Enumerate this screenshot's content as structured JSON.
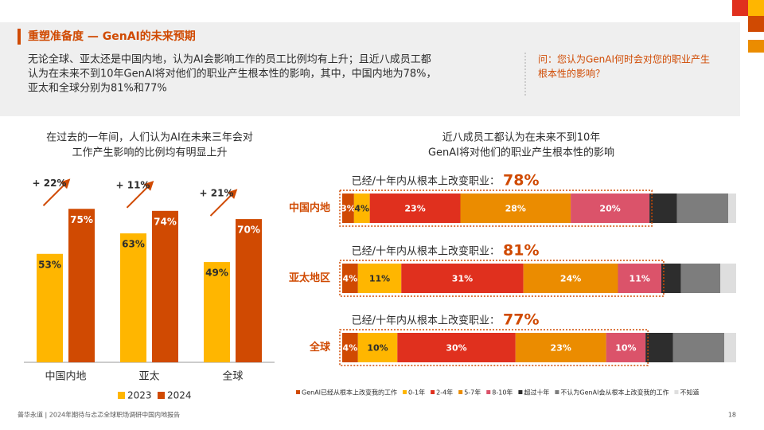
{
  "header": {
    "title": "重塑准备度 — GenAI的未来预期",
    "description": [
      "无论全球、亚太还是中国内地，认为AI会影响工作的员工比例均有上升；且近八成员工都",
      "认为在未来不到10年GenAI将对他们的职业产生根本性的影响，其中，中国内地为78%，",
      "亚太和全球分别为81%和77%"
    ],
    "question": [
      "问：您认为GenAI何时会对您的职业产生",
      "根本性的影响？"
    ]
  },
  "chart_data": [
    {
      "type": "bar",
      "title": [
        "在过去的一年间，人们认为AI在未来三年会对",
        "工作产生影响的比例均有明显上升"
      ],
      "categories": [
        "中国内地",
        "亚太",
        "全球"
      ],
      "ylim": [
        0,
        100
      ],
      "annotations": [
        "+ 22%",
        "+ 11%",
        "+ 21%"
      ],
      "series": [
        {
          "name": "2023",
          "color": "#ffb600",
          "values": [
            53,
            63,
            49
          ],
          "value_labels": [
            "53%",
            "63%",
            "49%"
          ]
        },
        {
          "name": "2024",
          "color": "#d04a02",
          "values": [
            75,
            74,
            70
          ],
          "value_labels": [
            "75%",
            "74%",
            "70%"
          ]
        }
      ]
    },
    {
      "type": "stacked_barh",
      "title": [
        "近八成员工都认为在未来不到10年",
        "GenAI将对他们的职业产生根本性的影响"
      ],
      "categories": [
        "中国内地",
        "亚太地区",
        "全球"
      ],
      "xlim": [
        0,
        100
      ],
      "total_label": "已经/十年内从根本上改变职业：",
      "row_totals": [
        78,
        81,
        77
      ],
      "row_total_labels": [
        "78%",
        "81%",
        "77%"
      ],
      "series": [
        {
          "name": "GenAI已经从根本上改变我的工作",
          "color": "#d04a02",
          "values": [
            3,
            4,
            4
          ],
          "value_labels": [
            "3%",
            "4%",
            "4%"
          ]
        },
        {
          "name": "0-1年",
          "color": "#ffb600",
          "values": [
            4,
            11,
            10
          ],
          "value_labels": [
            "4%",
            "11%",
            "10%"
          ]
        },
        {
          "name": "2-4年",
          "color": "#e0301e",
          "values": [
            23,
            31,
            30
          ],
          "value_labels": [
            "23%",
            "31%",
            "30%"
          ]
        },
        {
          "name": "5-7年",
          "color": "#eb8c00",
          "values": [
            28,
            24,
            23
          ],
          "value_labels": [
            "28%",
            "24%",
            "23%"
          ]
        },
        {
          "name": "8-10年",
          "color": "#db536a",
          "values": [
            20,
            11,
            10
          ],
          "value_labels": [
            "20%",
            "11%",
            "10%"
          ]
        },
        {
          "name": "超过十年",
          "color": "#2d2d2d",
          "values": [
            7,
            5,
            7
          ]
        },
        {
          "name": "不认为GenAI会从根本上改变我的工作",
          "color": "#7d7d7d",
          "values": [
            13,
            10,
            13
          ]
        },
        {
          "name": "不知道",
          "color": "#dedede",
          "values": [
            2,
            4,
            3
          ]
        }
      ]
    }
  ],
  "footer": {
    "source": "普华永道 | 2024年期待与忐忑全球职场调研中国内地报告",
    "page": "18"
  }
}
